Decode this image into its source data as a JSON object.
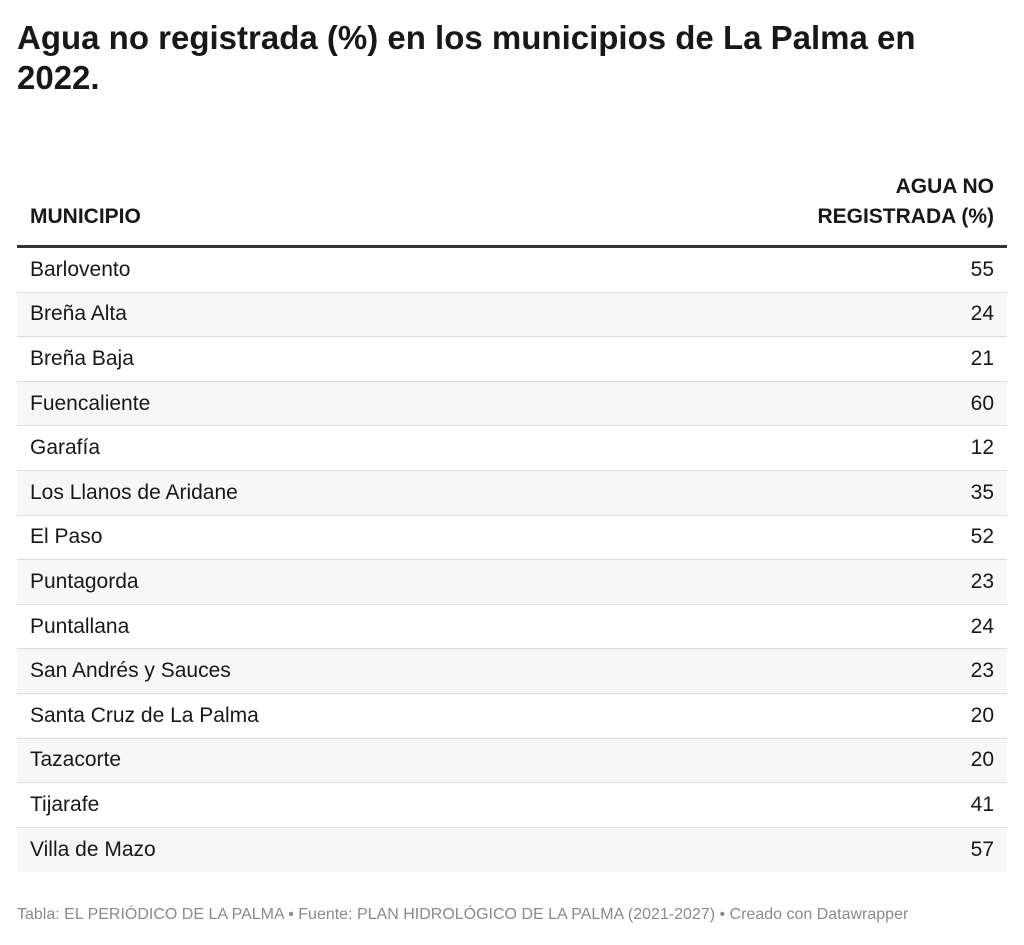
{
  "title": "Agua no registrada (%) en los municipios de La Palma en 2022.",
  "footer": "Tabla: EL PERIÓDICO DE LA PALMA • Fuente: PLAN HIDROLÓGICO DE LA PALMA (2021-2027) • Creado con Datawrapper",
  "chart_data": {
    "type": "table",
    "title": "Agua no registrada (%) en los municipios de La Palma en 2022.",
    "columns": [
      "MUNICIPIO",
      "AGUA NO REGISTRADA (%)"
    ],
    "rows": [
      {
        "municipio": "Barlovento",
        "value": "55"
      },
      {
        "municipio": "Breña Alta",
        "value": "24"
      },
      {
        "municipio": "Breña Baja",
        "value": "21"
      },
      {
        "municipio": "Fuencaliente",
        "value": "60"
      },
      {
        "municipio": "Garafía",
        "value": "12"
      },
      {
        "municipio": "Los Llanos de Aridane",
        "value": "35"
      },
      {
        "municipio": "El Paso",
        "value": "52"
      },
      {
        "municipio": "Puntagorda",
        "value": "23"
      },
      {
        "municipio": "Puntallana",
        "value": "24"
      },
      {
        "municipio": "San Andrés y Sauces",
        "value": "23"
      },
      {
        "municipio": "Santa Cruz de La Palma",
        "value": "20"
      },
      {
        "municipio": "Tazacorte",
        "value": "20"
      },
      {
        "municipio": "Tijarafe",
        "value": "41"
      },
      {
        "municipio": "Villa de Mazo",
        "value": "57"
      }
    ]
  }
}
